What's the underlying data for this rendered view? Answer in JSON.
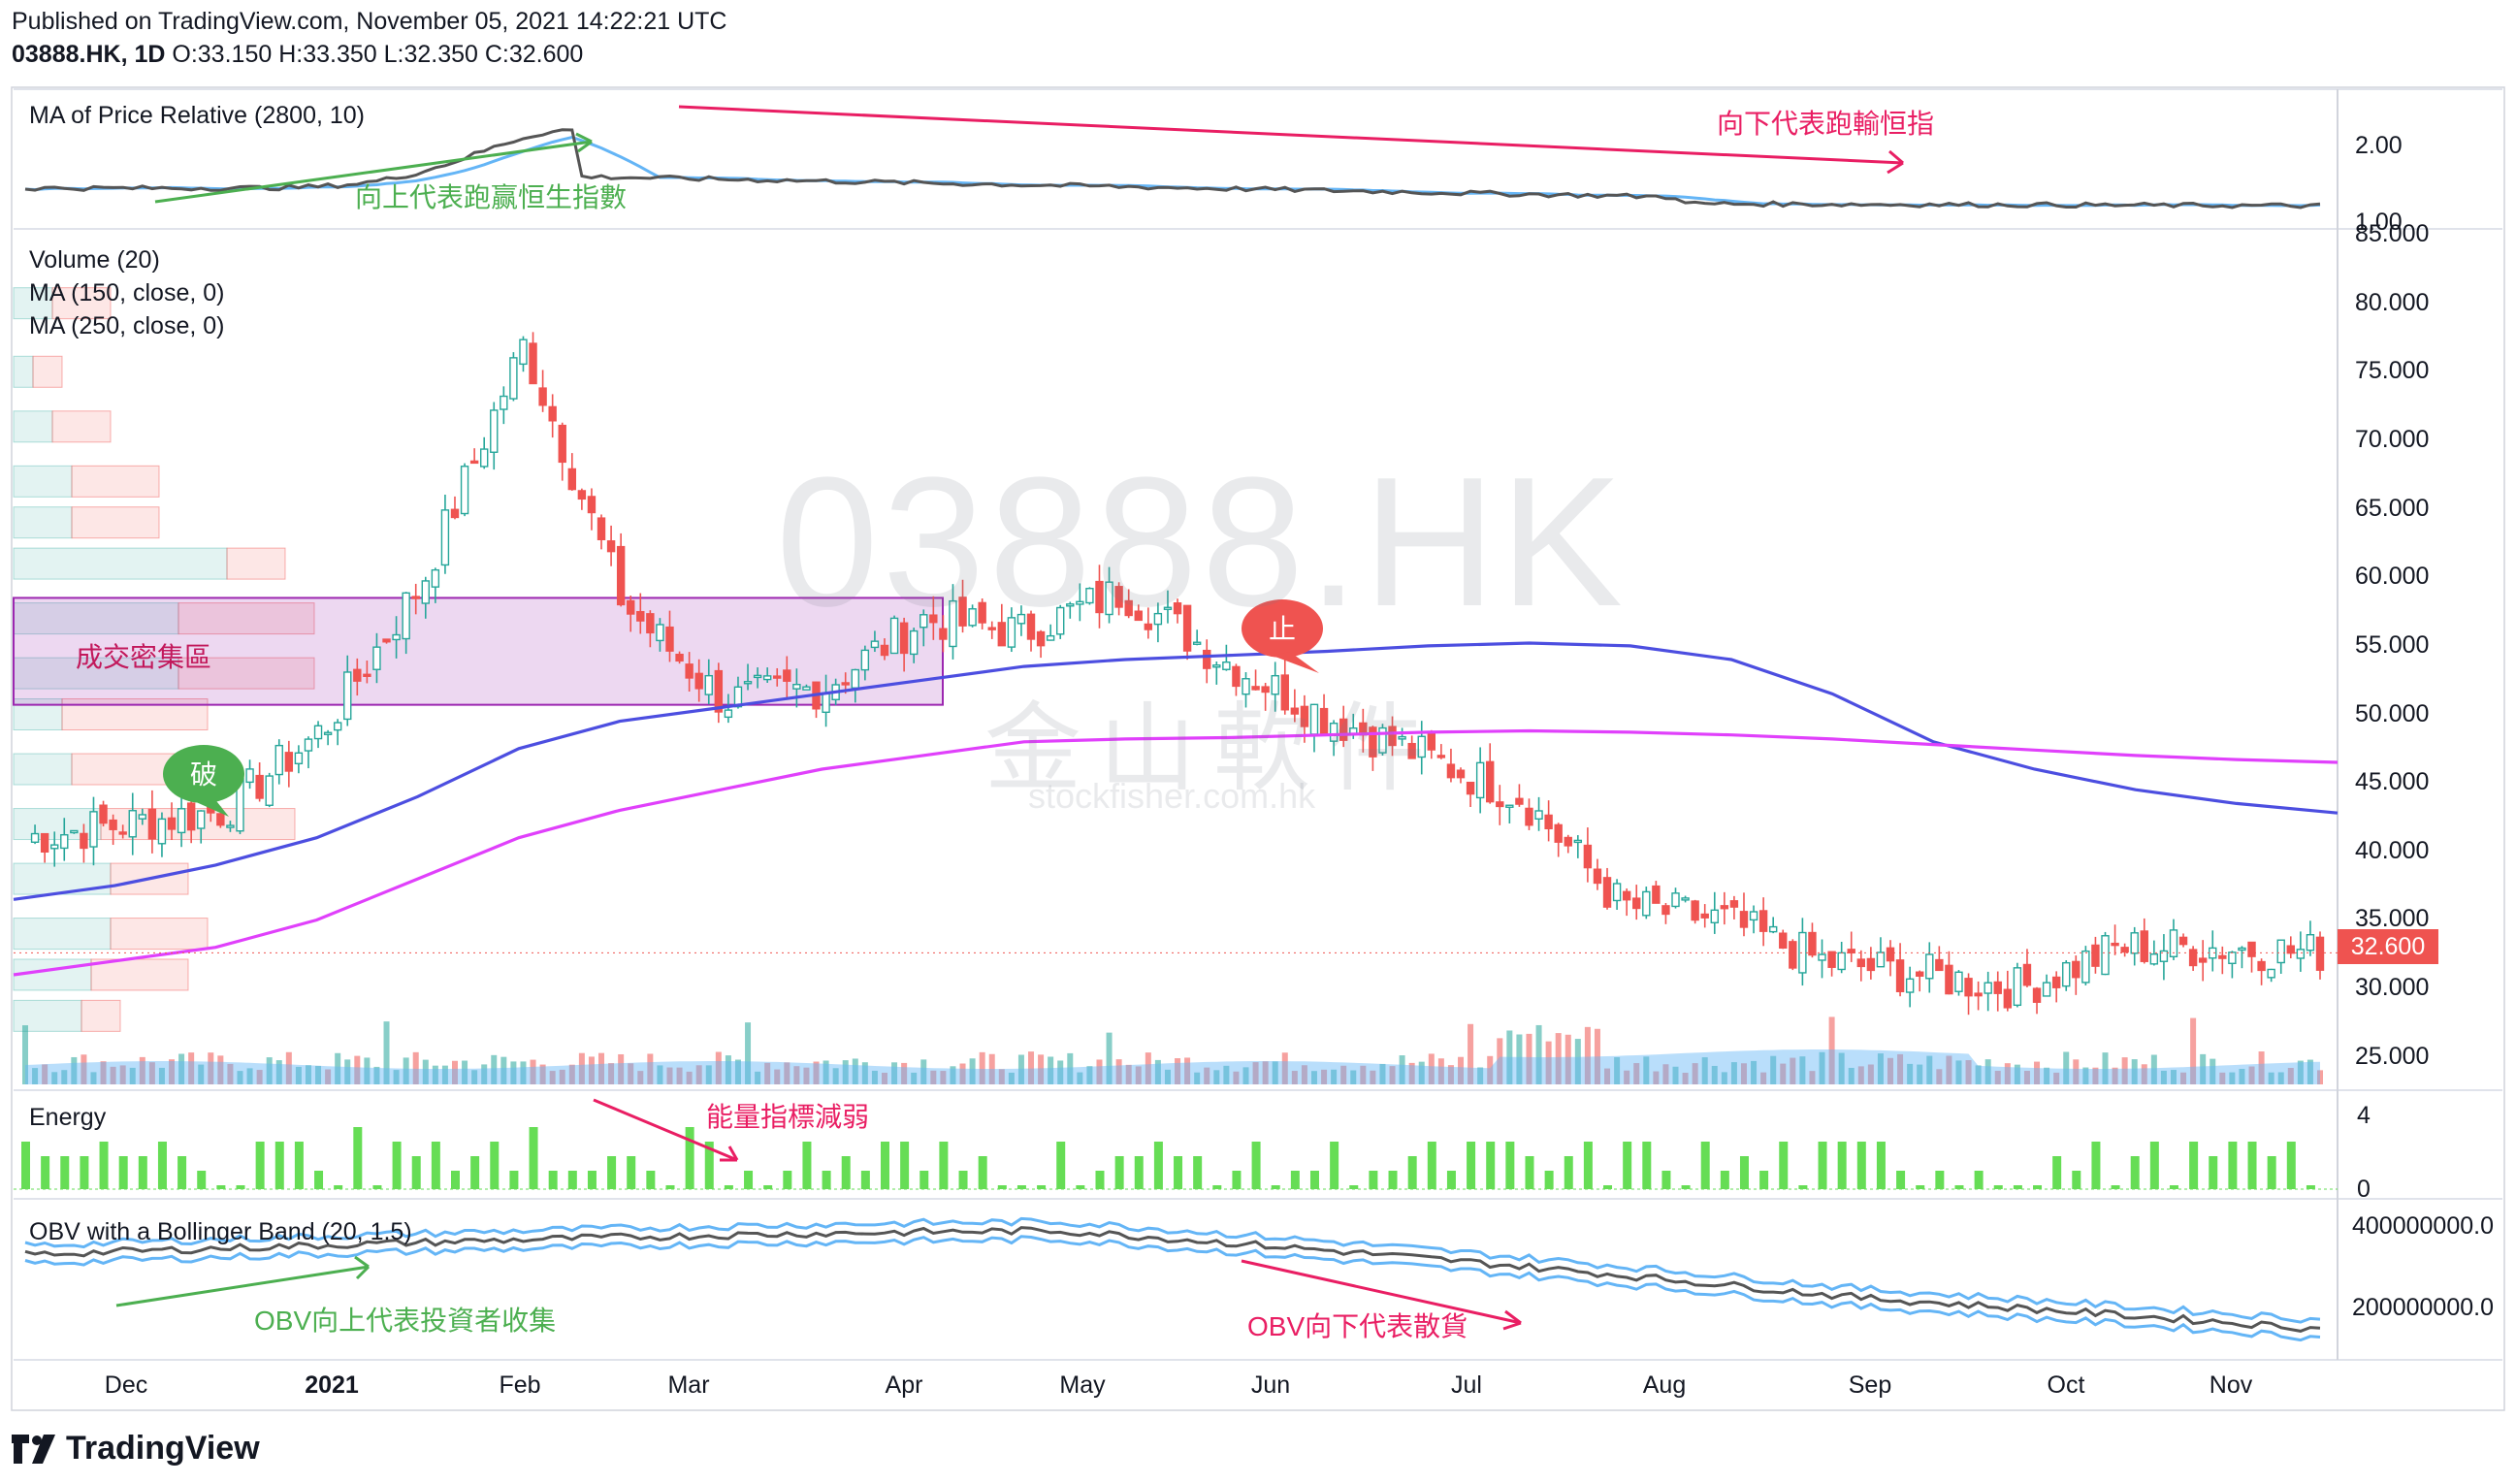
{
  "header": {
    "published": "Published on TradingView.com, November 05, 2021 14:22:21 UTC",
    "symbol": "03888.HK, 1D",
    "ohlc": "O:33.150 H:33.350 L:32.350 C:32.600"
  },
  "watermark": {
    "ticker": "03888.HK",
    "brand": "金山軟件",
    "site": "stockfisher.com.hk"
  },
  "footer": {
    "brand": "TradingView"
  },
  "colors": {
    "up": "#26a69a",
    "down": "#ef5350",
    "ma150": "#4c4ee0",
    "ma250": "#e040fb",
    "green_ann": "#4caf50",
    "red_ann": "#e91e63",
    "energy": "#66dd55",
    "obv_band": "#64b5f6"
  },
  "panes": {
    "relative": {
      "label": "MA of Price Relative (2800, 10)",
      "ticks": [
        "2.00",
        "1.00"
      ]
    },
    "price": {
      "labels": [
        "Volume (20)",
        "MA (150, close, 0)",
        "MA (250, close, 0)"
      ],
      "ticks": [
        "85.000",
        "80.000",
        "75.000",
        "70.000",
        "65.000",
        "60.000",
        "55.000",
        "50.000",
        "45.000",
        "40.000",
        "35.000",
        "30.000",
        "25.000"
      ],
      "last_price": "32.600"
    },
    "energy": {
      "label": "Energy",
      "ticks": [
        "4",
        "0"
      ]
    },
    "obv": {
      "label": "OBV with a Bollinger Band (20, 1.5)",
      "ticks": [
        "400000000.0",
        "200000000.0"
      ]
    }
  },
  "annotations": {
    "rel_up": "向上代表跑赢恒生指數",
    "rel_down": "向下代表跑輸恒指",
    "dense_zone": "成交密集區",
    "break": "破",
    "stop": "止",
    "energy_weak": "能量指標減弱",
    "obv_up": "OBV向上代表投資者收集",
    "obv_down": "OBV向下代表散貨"
  },
  "xaxis": {
    "labels": [
      "Dec",
      "2021",
      "Feb",
      "Mar",
      "Apr",
      "May",
      "Jun",
      "Jul",
      "Aug",
      "Sep",
      "Oct",
      "Nov"
    ]
  },
  "chart_data": {
    "type": "line",
    "title": "03888.HK, 1D",
    "x": [
      "2020-12-01",
      "2020-12-15",
      "2021-01-01",
      "2021-01-15",
      "2021-02-01",
      "2021-02-18",
      "2021-03-01",
      "2021-03-15",
      "2021-04-01",
      "2021-04-15",
      "2021-05-01",
      "2021-05-15",
      "2021-06-01",
      "2021-06-15",
      "2021-07-01",
      "2021-07-15",
      "2021-08-01",
      "2021-08-15",
      "2021-09-01",
      "2021-09-15",
      "2021-10-01",
      "2021-10-15",
      "2021-11-01",
      "2021-11-05"
    ],
    "series": [
      {
        "name": "MA (150, close, 0)",
        "values": [
          36.5,
          37.5,
          39,
          41,
          44,
          47.5,
          49.5,
          50.5,
          51.5,
          52.5,
          53.5,
          54,
          54.3,
          54.6,
          55,
          55.2,
          55,
          54,
          51.5,
          48,
          46,
          44.5,
          43.5,
          42.8
        ]
      },
      {
        "name": "MA (250, close, 0)",
        "values": [
          31,
          32,
          33,
          35,
          38,
          41,
          43,
          44.5,
          46,
          47,
          48,
          48.2,
          48.3,
          48.5,
          48.7,
          48.8,
          48.7,
          48.5,
          48.2,
          47.8,
          47.4,
          47,
          46.7,
          46.5
        ]
      }
    ],
    "close_approx": [
      41,
      42,
      43,
      49,
      60,
      77,
      58,
      51,
      52,
      57,
      56,
      59,
      54,
      50,
      47,
      44,
      36,
      35,
      32,
      31,
      30,
      33,
      33,
      32.6
    ],
    "ylim": [
      23,
      85
    ],
    "last": 32.6,
    "ohlc_last": {
      "open": 33.15,
      "high": 33.35,
      "low": 32.35,
      "close": 32.6
    }
  }
}
